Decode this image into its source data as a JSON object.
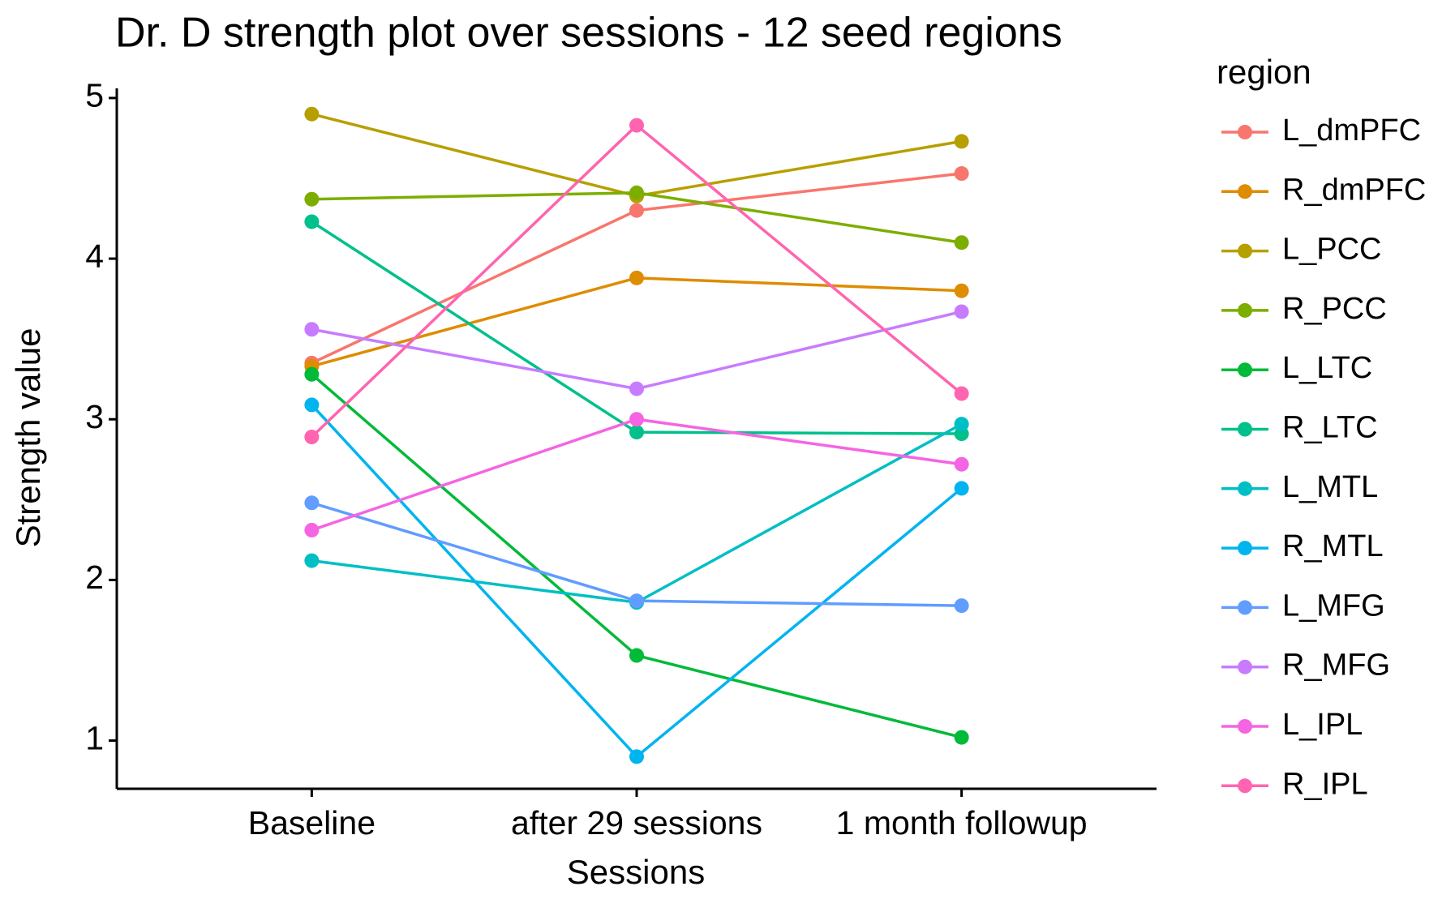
{
  "chart_data": {
    "type": "line",
    "title": "Dr. D strength plot over sessions - 12 seed regions",
    "x_label": "Sessions",
    "y_label": "Strength value",
    "legend_title": "region",
    "legend_position": "right",
    "grid": false,
    "categories": [
      "Baseline",
      "after 29 sessions",
      "1 month followup"
    ],
    "ylim": [
      0.7,
      5.06
    ],
    "yticks": [
      1,
      2,
      3,
      4,
      5
    ],
    "series": [
      {
        "name": "L_dmPFC",
        "color": "#F8766D",
        "values": [
          3.35,
          4.3,
          4.53
        ]
      },
      {
        "name": "R_dmPFC",
        "color": "#DE8C00",
        "values": [
          3.33,
          3.88,
          3.8
        ]
      },
      {
        "name": "L_PCC",
        "color": "#B79F00",
        "values": [
          4.9,
          4.39,
          4.73
        ]
      },
      {
        "name": "R_PCC",
        "color": "#7CAE00",
        "values": [
          4.37,
          4.41,
          4.1
        ]
      },
      {
        "name": "L_LTC",
        "color": "#00BA38",
        "values": [
          3.28,
          1.53,
          1.02
        ]
      },
      {
        "name": "R_LTC",
        "color": "#00C08B",
        "values": [
          4.23,
          2.92,
          2.91
        ]
      },
      {
        "name": "L_MTL",
        "color": "#00BFC4",
        "values": [
          2.12,
          1.86,
          2.97
        ]
      },
      {
        "name": "R_MTL",
        "color": "#00B4F0",
        "values": [
          3.09,
          0.9,
          2.57
        ]
      },
      {
        "name": "L_MFG",
        "color": "#619CFF",
        "values": [
          2.48,
          1.87,
          1.84
        ]
      },
      {
        "name": "R_MFG",
        "color": "#C77CFF",
        "values": [
          3.56,
          3.19,
          3.67
        ]
      },
      {
        "name": "L_IPL",
        "color": "#F564E3",
        "values": [
          2.31,
          3.0,
          2.72
        ]
      },
      {
        "name": "R_IPL",
        "color": "#FF64B0",
        "values": [
          2.89,
          4.83,
          3.16
        ]
      }
    ]
  }
}
